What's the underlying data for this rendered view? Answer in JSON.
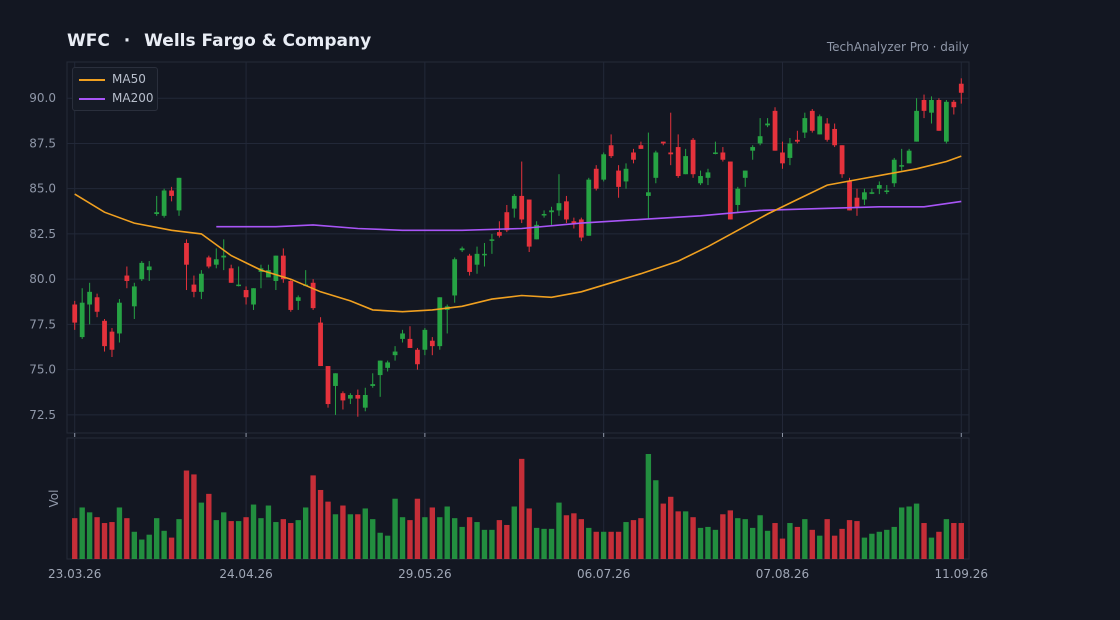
{
  "header": {
    "symbol": "WFC",
    "separator": "·",
    "company": "Wells Fargo & Company",
    "source": "TechAnalyzer Pro · daily"
  },
  "legend": {
    "ma50_label": "MA50",
    "ma200_label": "MA200"
  },
  "colors": {
    "background": "#131722",
    "up": "#26a344",
    "down": "#e5323c",
    "ma50": "#f0a020",
    "ma200": "#a855f7",
    "grid": "#222838"
  },
  "chart_data": {
    "type": "candlestick",
    "title": "WFC · Wells Fargo & Company",
    "ylim": [
      71.5,
      92
    ],
    "y_ticks": [
      "72.5",
      "75.0",
      "77.5",
      "80.0",
      "82.5",
      "85.0",
      "87.5",
      "90.0"
    ],
    "x_tick_labels": [
      "23.03.26",
      "24.04.26",
      "29.05.26",
      "06.07.26",
      "07.08.26",
      "11.09.26"
    ],
    "x_tick_index": [
      0,
      23,
      47,
      71,
      95,
      119
    ],
    "volume_axis_label": "Vol",
    "grid": true,
    "legend_position": "top-left",
    "candles": [
      [
        78.6,
        77.6,
        78.8,
        77.2
      ],
      [
        76.8,
        78.7,
        79.5,
        76.7
      ],
      [
        78.6,
        79.3,
        79.8,
        77.5
      ],
      [
        79.0,
        78.2,
        79.2,
        77.9
      ],
      [
        77.7,
        76.3,
        77.8,
        76.0
      ],
      [
        77.1,
        76.1,
        77.3,
        75.7
      ],
      [
        77.0,
        78.7,
        78.9,
        76.5
      ],
      [
        80.2,
        79.9,
        80.7,
        79.5
      ],
      [
        78.5,
        79.6,
        79.8,
        77.8
      ],
      [
        80.0,
        80.9,
        81.0,
        79.9
      ],
      [
        80.5,
        80.7,
        81.0,
        79.9
      ],
      [
        83.6,
        83.7,
        84.6,
        83.5
      ],
      [
        83.5,
        84.9,
        85.0,
        83.4
      ],
      [
        84.9,
        84.6,
        85.1,
        84.3
      ],
      [
        83.8,
        85.6,
        85.6,
        83.5
      ],
      [
        82.0,
        80.8,
        82.2,
        79.4
      ],
      [
        79.7,
        79.3,
        80.2,
        79.0
      ],
      [
        79.3,
        80.3,
        80.5,
        78.9
      ],
      [
        81.2,
        80.7,
        81.3,
        80.6
      ],
      [
        80.8,
        81.1,
        81.7,
        80.6
      ],
      [
        81.2,
        81.3,
        82.2,
        80.5
      ],
      [
        80.6,
        79.8,
        80.8,
        79.8
      ],
      [
        79.7,
        79.7,
        80.7,
        79.6
      ],
      [
        79.4,
        79.0,
        79.6,
        78.6
      ],
      [
        78.6,
        79.5,
        79.5,
        78.3
      ],
      [
        80.4,
        80.6,
        80.8,
        79.5
      ],
      [
        80.1,
        80.5,
        80.8,
        80.3
      ],
      [
        79.9,
        81.3,
        81.3,
        79.4
      ],
      [
        81.3,
        80.0,
        81.7,
        79.8
      ],
      [
        79.9,
        78.3,
        80.0,
        78.2
      ],
      [
        78.8,
        79.0,
        79.1,
        78.3
      ],
      [
        79.7,
        79.7,
        80.5,
        79.7
      ],
      [
        79.8,
        78.4,
        80.0,
        78.3
      ],
      [
        77.6,
        75.2,
        77.9,
        75.2
      ],
      [
        75.2,
        73.1,
        75.2,
        72.9
      ],
      [
        74.1,
        74.8,
        74.8,
        72.5
      ],
      [
        73.7,
        73.3,
        73.8,
        72.8
      ],
      [
        73.4,
        73.6,
        73.7,
        73.1
      ],
      [
        73.6,
        73.4,
        73.9,
        72.4
      ],
      [
        72.9,
        73.6,
        74.0,
        72.7
      ],
      [
        74.1,
        74.2,
        74.8,
        74.0
      ],
      [
        74.7,
        75.5,
        75.5,
        73.5
      ],
      [
        75.1,
        75.4,
        75.5,
        74.9
      ],
      [
        75.8,
        76.0,
        76.3,
        75.5
      ],
      [
        76.7,
        77.0,
        77.2,
        76.5
      ],
      [
        76.7,
        76.2,
        77.4,
        76.2
      ],
      [
        76.1,
        75.3,
        76.2,
        75.0
      ],
      [
        76.1,
        77.2,
        77.3,
        75.8
      ],
      [
        76.6,
        76.3,
        76.8,
        75.8
      ],
      [
        76.3,
        79.0,
        79.0,
        76.1
      ],
      [
        78.3,
        78.5,
        78.6,
        77.0
      ],
      [
        79.1,
        81.1,
        81.2,
        78.7
      ],
      [
        81.6,
        81.7,
        81.8,
        81.5
      ],
      [
        81.3,
        80.4,
        81.4,
        80.2
      ],
      [
        80.8,
        81.4,
        81.8,
        80.3
      ],
      [
        81.4,
        81.4,
        82.0,
        80.7
      ],
      [
        82.2,
        82.2,
        82.5,
        81.4
      ],
      [
        82.6,
        82.4,
        83.2,
        82.3
      ],
      [
        83.7,
        82.7,
        84.1,
        82.6
      ],
      [
        83.9,
        84.6,
        84.7,
        83.4
      ],
      [
        84.6,
        83.3,
        86.5,
        83.1
      ],
      [
        84.4,
        81.8,
        84.4,
        81.5
      ],
      [
        82.2,
        83.0,
        83.2,
        82.2
      ],
      [
        83.6,
        83.6,
        83.8,
        83.4
      ],
      [
        83.7,
        83.8,
        84.0,
        83.0
      ],
      [
        83.8,
        84.2,
        85.8,
        83.5
      ],
      [
        84.3,
        83.3,
        84.6,
        83.1
      ],
      [
        83.2,
        83.1,
        83.4,
        82.8
      ],
      [
        83.3,
        82.3,
        83.4,
        82.1
      ],
      [
        82.4,
        85.5,
        85.6,
        82.4
      ],
      [
        86.1,
        85.0,
        86.3,
        84.9
      ],
      [
        85.5,
        86.9,
        87.0,
        85.4
      ],
      [
        87.4,
        86.8,
        88.0,
        86.7
      ],
      [
        86.0,
        85.1,
        86.3,
        84.5
      ],
      [
        85.4,
        86.1,
        86.4,
        85.0
      ],
      [
        87.0,
        86.6,
        87.2,
        86.4
      ],
      [
        87.4,
        87.2,
        87.6,
        87.2
      ],
      [
        84.6,
        84.8,
        88.1,
        83.3
      ],
      [
        85.6,
        87.0,
        87.1,
        85.3
      ],
      [
        87.6,
        87.5,
        87.6,
        87.4
      ],
      [
        87.0,
        86.9,
        89.2,
        86.3
      ],
      [
        87.3,
        85.7,
        88.0,
        85.6
      ],
      [
        85.8,
        86.8,
        87.2,
        85.8
      ],
      [
        87.7,
        85.8,
        87.8,
        85.6
      ],
      [
        85.3,
        85.7,
        86.0,
        85.2
      ],
      [
        85.6,
        85.9,
        86.1,
        85.2
      ],
      [
        87.0,
        87.0,
        87.6,
        86.9
      ],
      [
        87.0,
        86.6,
        87.3,
        86.5
      ],
      [
        86.5,
        83.3,
        86.5,
        83.3
      ],
      [
        84.1,
        85.0,
        85.1,
        83.7
      ],
      [
        85.6,
        86.0,
        86.0,
        85.1
      ],
      [
        87.1,
        87.3,
        87.4,
        86.6
      ],
      [
        87.5,
        87.9,
        88.9,
        87.4
      ],
      [
        88.5,
        88.6,
        88.9,
        88.4
      ],
      [
        89.3,
        87.1,
        89.5,
        87.1
      ],
      [
        87.0,
        86.4,
        87.6,
        86.1
      ],
      [
        86.7,
        87.5,
        87.8,
        86.3
      ],
      [
        87.7,
        87.6,
        88.2,
        87.5
      ],
      [
        88.1,
        88.9,
        89.2,
        87.8
      ],
      [
        89.3,
        88.2,
        89.4,
        88.1
      ],
      [
        88.0,
        89.0,
        89.1,
        88.0
      ],
      [
        88.6,
        87.7,
        88.9,
        87.6
      ],
      [
        88.3,
        87.4,
        88.6,
        87.3
      ],
      [
        87.4,
        85.8,
        87.4,
        85.6
      ],
      [
        85.4,
        83.8,
        85.6,
        83.8
      ],
      [
        84.5,
        84.0,
        85.0,
        83.5
      ],
      [
        84.4,
        84.8,
        85.0,
        84.1
      ],
      [
        84.8,
        84.8,
        85.0,
        84.7
      ],
      [
        85.0,
        85.2,
        85.4,
        84.7
      ],
      [
        84.9,
        84.9,
        85.2,
        84.7
      ],
      [
        85.3,
        86.6,
        86.7,
        85.1
      ],
      [
        86.3,
        86.3,
        87.2,
        86.0
      ],
      [
        86.4,
        87.1,
        87.2,
        86.4
      ],
      [
        87.6,
        89.3,
        90.0,
        87.6
      ],
      [
        89.9,
        89.3,
        90.2,
        88.9
      ],
      [
        89.2,
        89.9,
        90.1,
        88.6
      ],
      [
        89.9,
        88.2,
        90.0,
        88.2
      ],
      [
        87.6,
        89.8,
        89.9,
        87.5
      ],
      [
        89.8,
        89.5,
        89.9,
        89.1
      ],
      [
        90.8,
        90.3,
        91.1,
        89.7
      ]
    ],
    "volume": [
      0.42,
      0.53,
      0.48,
      0.43,
      0.37,
      0.38,
      0.53,
      0.42,
      0.28,
      0.2,
      0.25,
      0.42,
      0.29,
      0.22,
      0.41,
      0.91,
      0.87,
      0.58,
      0.67,
      0.4,
      0.48,
      0.39,
      0.39,
      0.43,
      0.56,
      0.42,
      0.55,
      0.38,
      0.41,
      0.37,
      0.4,
      0.53,
      0.86,
      0.71,
      0.59,
      0.46,
      0.55,
      0.46,
      0.46,
      0.52,
      0.41,
      0.27,
      0.24,
      0.62,
      0.43,
      0.4,
      0.62,
      0.43,
      0.53,
      0.43,
      0.54,
      0.42,
      0.33,
      0.43,
      0.38,
      0.3,
      0.3,
      0.4,
      0.35,
      0.54,
      1.03,
      0.52,
      0.32,
      0.31,
      0.31,
      0.58,
      0.45,
      0.47,
      0.41,
      0.32,
      0.28,
      0.28,
      0.28,
      0.28,
      0.38,
      0.4,
      0.42,
      1.08,
      0.81,
      0.57,
      0.64,
      0.49,
      0.49,
      0.43,
      0.32,
      0.33,
      0.3,
      0.46,
      0.5,
      0.42,
      0.41,
      0.32,
      0.45,
      0.29,
      0.37,
      0.21,
      0.37,
      0.33,
      0.41,
      0.3,
      0.24,
      0.41,
      0.24,
      0.31,
      0.4,
      0.39,
      0.22,
      0.26,
      0.28,
      0.3,
      0.33,
      0.53,
      0.54,
      0.57,
      0.37,
      0.22,
      0.28,
      0.41,
      0.37,
      0.37
    ],
    "ma50": [
      [
        0,
        84.7
      ],
      [
        4,
        83.7
      ],
      [
        8,
        83.1
      ],
      [
        13,
        82.7
      ],
      [
        17,
        82.5
      ],
      [
        21,
        81.3
      ],
      [
        25,
        80.5
      ],
      [
        29,
        80.0
      ],
      [
        33,
        79.3
      ],
      [
        37,
        78.8
      ],
      [
        40,
        78.3
      ],
      [
        44,
        78.2
      ],
      [
        48,
        78.3
      ],
      [
        52,
        78.5
      ],
      [
        56,
        78.9
      ],
      [
        60,
        79.1
      ],
      [
        64,
        79.0
      ],
      [
        68,
        79.3
      ],
      [
        72,
        79.8
      ],
      [
        76,
        80.3
      ],
      [
        81,
        81.0
      ],
      [
        85,
        81.8
      ],
      [
        89,
        82.7
      ],
      [
        93,
        83.6
      ],
      [
        97,
        84.4
      ],
      [
        101,
        85.2
      ],
      [
        105,
        85.5
      ],
      [
        109,
        85.8
      ],
      [
        113,
        86.1
      ],
      [
        117,
        86.5
      ],
      [
        119,
        86.8
      ]
    ],
    "ma200": [
      [
        19,
        82.9
      ],
      [
        27,
        82.9
      ],
      [
        32,
        83.0
      ],
      [
        38,
        82.8
      ],
      [
        44,
        82.7
      ],
      [
        52,
        82.7
      ],
      [
        60,
        82.8
      ],
      [
        68,
        83.1
      ],
      [
        76,
        83.3
      ],
      [
        84,
        83.5
      ],
      [
        92,
        83.8
      ],
      [
        100,
        83.9
      ],
      [
        108,
        84.0
      ],
      [
        114,
        84.0
      ],
      [
        119,
        84.3
      ]
    ]
  }
}
